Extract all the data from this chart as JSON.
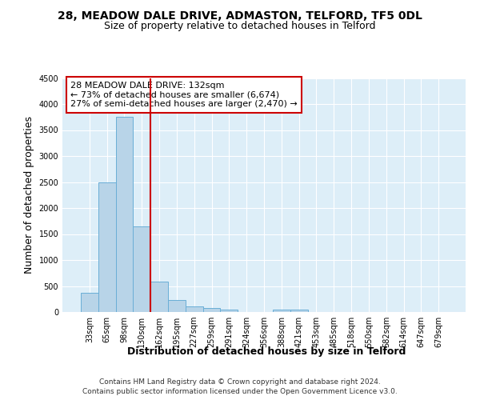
{
  "title1": "28, MEADOW DALE DRIVE, ADMASTON, TELFORD, TF5 0DL",
  "title2": "Size of property relative to detached houses in Telford",
  "xlabel": "Distribution of detached houses by size in Telford",
  "ylabel": "Number of detached properties",
  "categories": [
    "33sqm",
    "65sqm",
    "98sqm",
    "130sqm",
    "162sqm",
    "195sqm",
    "227sqm",
    "259sqm",
    "291sqm",
    "324sqm",
    "356sqm",
    "388sqm",
    "421sqm",
    "453sqm",
    "485sqm",
    "518sqm",
    "550sqm",
    "582sqm",
    "614sqm",
    "647sqm",
    "679sqm"
  ],
  "values": [
    370,
    2500,
    3750,
    1650,
    590,
    230,
    110,
    70,
    50,
    0,
    0,
    50,
    50,
    0,
    0,
    0,
    0,
    0,
    0,
    0,
    0
  ],
  "bar_color": "#b8d4e8",
  "bar_edge_color": "#6aaed6",
  "highlight_bar_index": 3,
  "highlight_color": "#cc0000",
  "annotation_text": "28 MEADOW DALE DRIVE: 132sqm\n← 73% of detached houses are smaller (6,674)\n27% of semi-detached houses are larger (2,470) →",
  "annotation_box_color": "#ffffff",
  "annotation_box_edge": "#cc0000",
  "ylim": [
    0,
    4500
  ],
  "yticks": [
    0,
    500,
    1000,
    1500,
    2000,
    2500,
    3000,
    3500,
    4000,
    4500
  ],
  "footnote1": "Contains HM Land Registry data © Crown copyright and database right 2024.",
  "footnote2": "Contains public sector information licensed under the Open Government Licence v3.0.",
  "background_color": "#ddeef8",
  "grid_color": "#ffffff",
  "title_fontsize": 10,
  "subtitle_fontsize": 9,
  "axis_label_fontsize": 9,
  "tick_fontsize": 7,
  "footnote_fontsize": 6.5,
  "annotation_fontsize": 8
}
